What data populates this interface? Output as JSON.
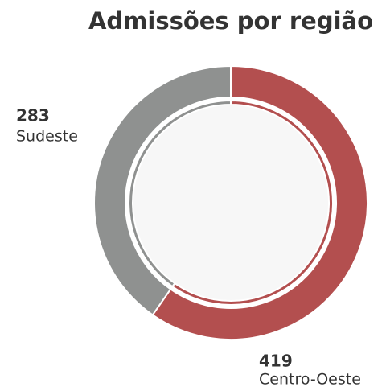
{
  "chart_data": {
    "type": "pie",
    "title": "Admissões por região",
    "categories": [
      "Centro-Oeste",
      "Sudeste"
    ],
    "values": [
      419,
      283
    ],
    "colors": [
      "#b34f4f",
      "#8f9190"
    ]
  }
}
